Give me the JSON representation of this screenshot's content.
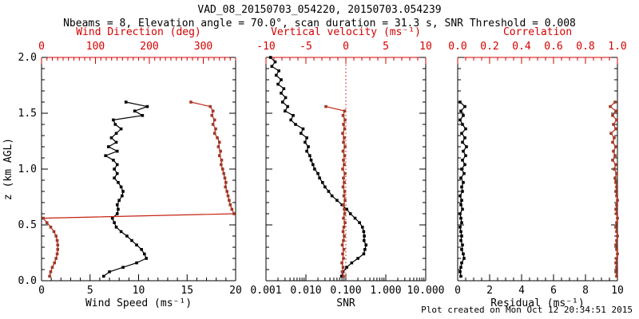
{
  "title": "VAD_08_20150703_054220, 20150703.054239",
  "subtitle": "Nbeams = 8, Elevation angle = 70.0°, scan duration = 31.3 s, SNR Threshold = 0.008",
  "footer": "Plot created on Mon Oct 12 20:34:51 2015",
  "colors": {
    "red_axis": "#d40000",
    "red_line": "#c52311",
    "dark_red": "#9e3a28",
    "black": "#000000"
  },
  "y_axis": {
    "label": "z (km AGL)",
    "lim": [
      0,
      2
    ],
    "tick_values": [
      0.0,
      0.5,
      1.0,
      1.5,
      2.0
    ],
    "tick_labels": [
      "0.0",
      "0.5",
      "1.0",
      "1.5",
      "2.0"
    ],
    "minor_step": 0.1
  },
  "chart_data": [
    {
      "name": "wind",
      "type": "line",
      "top_axis": {
        "label": "Wind Direction (deg)",
        "range": [
          0,
          360
        ],
        "tick_values": [
          0,
          100,
          200,
          300
        ],
        "tick_labels": [
          "0",
          "100",
          "200",
          "300"
        ],
        "minor_step": 10,
        "zero_line": false
      },
      "bottom_axis": {
        "label": "Wind Speed (ms⁻¹)",
        "scale": "linear",
        "range": [
          0,
          20
        ],
        "tick_values": [
          0,
          5,
          10,
          15,
          20
        ],
        "tick_labels": [
          "0",
          "5",
          "10",
          "15",
          "20"
        ],
        "minor_step": 1
      },
      "series": [
        {
          "name": "wind-speed",
          "axis": "bottom",
          "color": "black",
          "z": [
            1.6,
            1.56,
            1.52,
            1.48,
            1.44,
            1.4,
            1.36,
            1.32,
            1.28,
            1.24,
            1.2,
            1.16,
            1.12,
            1.08,
            1.04,
            1.0,
            0.96,
            0.92,
            0.88,
            0.84,
            0.8,
            0.76,
            0.72,
            0.68,
            0.64,
            0.6,
            0.56,
            0.52,
            0.48,
            0.44,
            0.4,
            0.36,
            0.32,
            0.28,
            0.24,
            0.2,
            0.16,
            0.12,
            0.08,
            0.04
          ],
          "values": [
            8.7,
            10.9,
            9.6,
            10.4,
            7.4,
            7.6,
            8.2,
            7.7,
            7.2,
            7.7,
            6.9,
            7.8,
            6.6,
            7.4,
            7.8,
            7.5,
            7.8,
            7.5,
            7.9,
            8.2,
            8.4,
            8.3,
            8.0,
            7.8,
            7.9,
            7.8,
            7.3,
            7.5,
            7.7,
            8.2,
            8.8,
            9.3,
            9.8,
            10.3,
            10.6,
            10.8,
            9.8,
            8.4,
            7.0,
            6.4
          ]
        },
        {
          "name": "wind-direction",
          "axis": "top",
          "color": "dark_red",
          "z": [
            1.6,
            1.56,
            1.52,
            1.48,
            1.44,
            1.4,
            1.36,
            1.32,
            1.28,
            1.24,
            1.2,
            1.16,
            1.12,
            1.08,
            1.04,
            1.0,
            0.96,
            0.92,
            0.88,
            0.84,
            0.8,
            0.76,
            0.72,
            0.68,
            0.64,
            0.6,
            0.56,
            0.52,
            0.48,
            0.44,
            0.4,
            0.36,
            0.32,
            0.28,
            0.24,
            0.2,
            0.16,
            0.12,
            0.08,
            0.04
          ],
          "values": [
            277,
            313,
            318,
            316,
            321,
            318,
            323,
            321,
            326,
            330,
            328,
            332,
            330,
            334,
            333,
            336,
            338,
            340,
            342,
            341,
            344,
            346,
            348,
            350,
            353,
            357,
            3,
            10,
            17,
            23,
            27,
            29,
            30,
            30,
            29,
            27,
            24,
            20,
            17,
            15
          ]
        }
      ]
    },
    {
      "name": "snr-velocity",
      "type": "line",
      "top_axis": {
        "label": "Vertical velocity (ms⁻¹)",
        "range": [
          -10,
          10
        ],
        "tick_values": [
          -10,
          -5,
          0,
          5,
          10
        ],
        "tick_labels": [
          "-10",
          "-5",
          "0",
          "5",
          "10"
        ],
        "minor_step": 1,
        "zero_line": true
      },
      "bottom_axis": {
        "label": "SNR",
        "scale": "log",
        "range": [
          0.001,
          10
        ],
        "tick_values": [
          0.001,
          0.01,
          0.1,
          1,
          10
        ],
        "tick_labels": [
          "0.001",
          "0.010",
          "0.100",
          "1.000",
          "10.000"
        ]
      },
      "series": [
        {
          "name": "snr",
          "axis": "bottom",
          "color": "black",
          "z": [
            2.0,
            1.96,
            1.92,
            1.88,
            1.84,
            1.8,
            1.76,
            1.72,
            1.68,
            1.64,
            1.6,
            1.56,
            1.52,
            1.48,
            1.44,
            1.4,
            1.36,
            1.32,
            1.28,
            1.24,
            1.2,
            1.16,
            1.12,
            1.08,
            1.04,
            1.0,
            0.96,
            0.92,
            0.88,
            0.84,
            0.8,
            0.76,
            0.72,
            0.68,
            0.64,
            0.6,
            0.56,
            0.52,
            0.48,
            0.44,
            0.4,
            0.36,
            0.32,
            0.28,
            0.24,
            0.2,
            0.16,
            0.12,
            0.08,
            0.04
          ],
          "values": [
            0.0013,
            0.0017,
            0.0014,
            0.0021,
            0.0018,
            0.0024,
            0.002,
            0.0028,
            0.0024,
            0.0031,
            0.0026,
            0.0035,
            0.003,
            0.0048,
            0.0042,
            0.0055,
            0.0085,
            0.0075,
            0.0105,
            0.0095,
            0.0115,
            0.0105,
            0.0125,
            0.0135,
            0.015,
            0.0165,
            0.02,
            0.022,
            0.026,
            0.03,
            0.037,
            0.045,
            0.06,
            0.08,
            0.105,
            0.13,
            0.17,
            0.22,
            0.26,
            0.28,
            0.29,
            0.285,
            0.32,
            0.3,
            0.28,
            0.2,
            0.14,
            0.105,
            0.085,
            0.078
          ]
        },
        {
          "name": "vertical-velocity",
          "axis": "top",
          "color": "dark_red",
          "z": [
            1.56,
            1.52,
            1.48,
            1.44,
            1.4,
            1.36,
            1.32,
            1.28,
            1.24,
            1.2,
            1.16,
            1.12,
            1.08,
            1.04,
            1.0,
            0.96,
            0.92,
            0.88,
            0.84,
            0.8,
            0.76,
            0.72,
            0.68,
            0.64,
            0.6,
            0.56,
            0.52,
            0.48,
            0.44,
            0.4,
            0.36,
            0.32,
            0.28,
            0.24,
            0.2,
            0.16,
            0.12,
            0.08,
            0.04
          ],
          "values": [
            -2.5,
            -0.15,
            -0.35,
            -0.1,
            -0.3,
            -0.15,
            -0.4,
            -0.2,
            -0.3,
            -0.1,
            -0.35,
            -0.15,
            -0.3,
            -0.2,
            -0.4,
            -0.1,
            -0.3,
            -0.2,
            -0.35,
            -0.15,
            -0.25,
            -0.1,
            -0.3,
            -0.2,
            -0.15,
            -0.3,
            -0.1,
            -0.25,
            -0.35,
            -0.2,
            -0.3,
            -0.45,
            -0.25,
            -0.4,
            -0.3,
            -0.5,
            -0.35,
            -0.45,
            -0.3
          ]
        }
      ]
    },
    {
      "name": "residual-correlation",
      "type": "line",
      "top_axis": {
        "label": "Correlation",
        "range": [
          0,
          1
        ],
        "tick_values": [
          0.0,
          0.2,
          0.4,
          0.6,
          0.8,
          1.0
        ],
        "tick_labels": [
          "0.0",
          "0.2",
          "0.4",
          "0.6",
          "0.8",
          "1.0"
        ],
        "minor_step": 0.05,
        "zero_line": false
      },
      "bottom_axis": {
        "label": "Residual (ms⁻¹)",
        "scale": "linear",
        "range": [
          0,
          10
        ],
        "tick_values": [
          0,
          2,
          4,
          6,
          8,
          10
        ],
        "tick_labels": [
          "0",
          "2",
          "4",
          "6",
          "8",
          "10"
        ],
        "minor_step": 0.5
      },
      "series": [
        {
          "name": "residual",
          "axis": "bottom",
          "color": "black",
          "z": [
            1.6,
            1.56,
            1.52,
            1.48,
            1.44,
            1.4,
            1.36,
            1.32,
            1.28,
            1.24,
            1.2,
            1.16,
            1.12,
            1.08,
            1.04,
            1.0,
            0.96,
            0.92,
            0.88,
            0.84,
            0.8,
            0.76,
            0.72,
            0.68,
            0.64,
            0.6,
            0.56,
            0.52,
            0.48,
            0.44,
            0.4,
            0.36,
            0.32,
            0.28,
            0.24,
            0.2,
            0.16,
            0.12,
            0.08,
            0.04
          ],
          "values": [
            0.15,
            0.45,
            0.2,
            0.35,
            0.15,
            0.3,
            0.5,
            0.25,
            0.45,
            0.3,
            0.55,
            0.35,
            0.5,
            0.3,
            0.45,
            0.25,
            0.4,
            0.2,
            0.35,
            0.25,
            0.3,
            0.15,
            0.25,
            0.2,
            0.3,
            0.15,
            0.2,
            0.25,
            0.15,
            0.2,
            0.25,
            0.2,
            0.3,
            0.25,
            0.35,
            0.4,
            0.25,
            0.2,
            0.15,
            0.2
          ]
        },
        {
          "name": "correlation",
          "axis": "top",
          "color": "dark_red",
          "z": [
            1.6,
            1.56,
            1.52,
            1.48,
            1.44,
            1.4,
            1.36,
            1.32,
            1.28,
            1.24,
            1.2,
            1.16,
            1.12,
            1.08,
            1.04,
            1.0,
            0.96,
            0.92,
            0.88,
            0.84,
            0.8,
            0.76,
            0.72,
            0.68,
            0.64,
            0.6,
            0.56,
            0.52,
            0.48,
            0.44,
            0.4,
            0.36,
            0.32,
            0.28,
            0.24,
            0.2,
            0.16,
            0.12,
            0.08,
            0.04
          ],
          "values": [
            0.985,
            0.955,
            0.99,
            0.97,
            0.995,
            0.975,
            0.99,
            0.96,
            0.98,
            0.97,
            0.99,
            0.975,
            0.985,
            0.97,
            0.99,
            0.98,
            0.995,
            0.985,
            0.99,
            0.995,
            0.99,
            0.995,
            1.0,
            0.995,
            0.99,
            0.995,
            1.0,
            0.995,
            0.99,
            0.995,
            1.0,
            0.995,
            0.99,
            0.995,
            1.0,
            0.995,
            0.99,
            0.995,
            0.99,
            0.995
          ]
        }
      ]
    }
  ]
}
